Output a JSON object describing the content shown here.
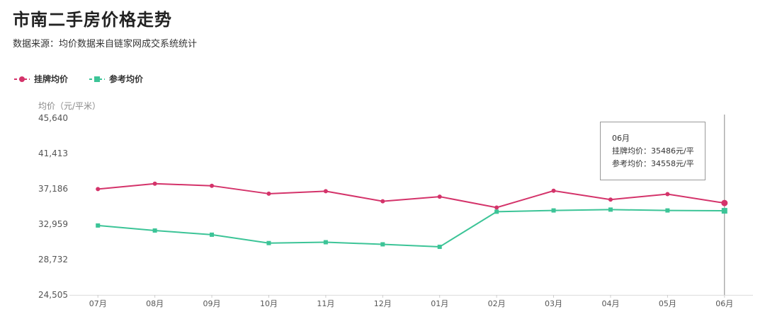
{
  "title": "市南二手房价格走势",
  "subtitle": "数据来源：均价数据来自链家网成交系统统计",
  "legend": [
    {
      "name": "挂牌均价",
      "color": "#d4336a"
    },
    {
      "name": "参考均价",
      "color": "#3cc497"
    }
  ],
  "chart_data": {
    "type": "line",
    "title": "市南二手房价格走势",
    "ylabel": "均价（元/平米）",
    "categories": [
      "07月",
      "08月",
      "09月",
      "10月",
      "11月",
      "12月",
      "01月",
      "02月",
      "03月",
      "04月",
      "05月",
      "06月"
    ],
    "yticks": [
      "45,640",
      "41,413",
      "37,186",
      "32,959",
      "28,732",
      "24,505"
    ],
    "ylim": [
      24505,
      45640
    ],
    "grid": false,
    "legend_position": "top-left",
    "series": [
      {
        "name": "挂牌均价",
        "color": "#d4336a",
        "marker": "circle",
        "values": [
          37150,
          37800,
          37550,
          36600,
          36900,
          35700,
          36250,
          34950,
          36950,
          35900,
          36550,
          35486
        ]
      },
      {
        "name": "参考均价",
        "color": "#3cc497",
        "marker": "square",
        "values": [
          32800,
          32200,
          31700,
          30700,
          30800,
          30550,
          30250,
          34450,
          34600,
          34700,
          34600,
          34558
        ]
      }
    ]
  },
  "tooltip": {
    "header": "06月",
    "line1": "挂牌均价：35486元/平",
    "line2": "参考均价：34558元/平"
  }
}
